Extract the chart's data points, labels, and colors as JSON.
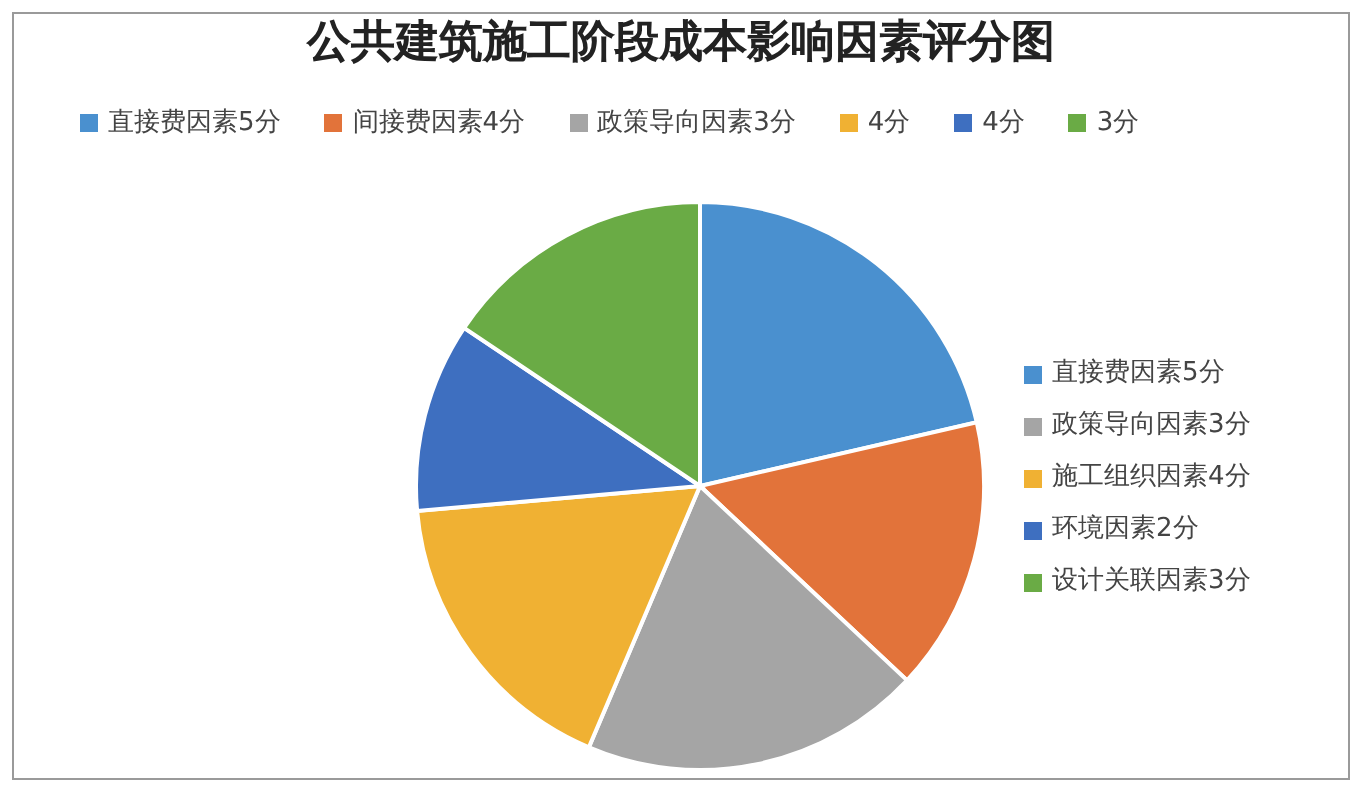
{
  "chart_data": {
    "type": "pie",
    "title": "公共建筑施工阶段成本影响因素评分图",
    "categories": [
      "直接费因素5分",
      "间接费因素4分",
      "政策导向因素3分",
      "4分",
      "4分",
      "3分"
    ],
    "values": [
      21.4,
      15.6,
      19.4,
      17.2,
      10.8,
      15.6
    ],
    "colors": [
      "#4a90cf",
      "#e2733a",
      "#a5a5a5",
      "#f0b133",
      "#3e6fc0",
      "#6aab45"
    ],
    "legend": "top",
    "annotations": [
      "直接费因素5分",
      "政策导向因素3分",
      "施工组织因素4分",
      "环境因素2分",
      "设计关联因素3分"
    ]
  }
}
